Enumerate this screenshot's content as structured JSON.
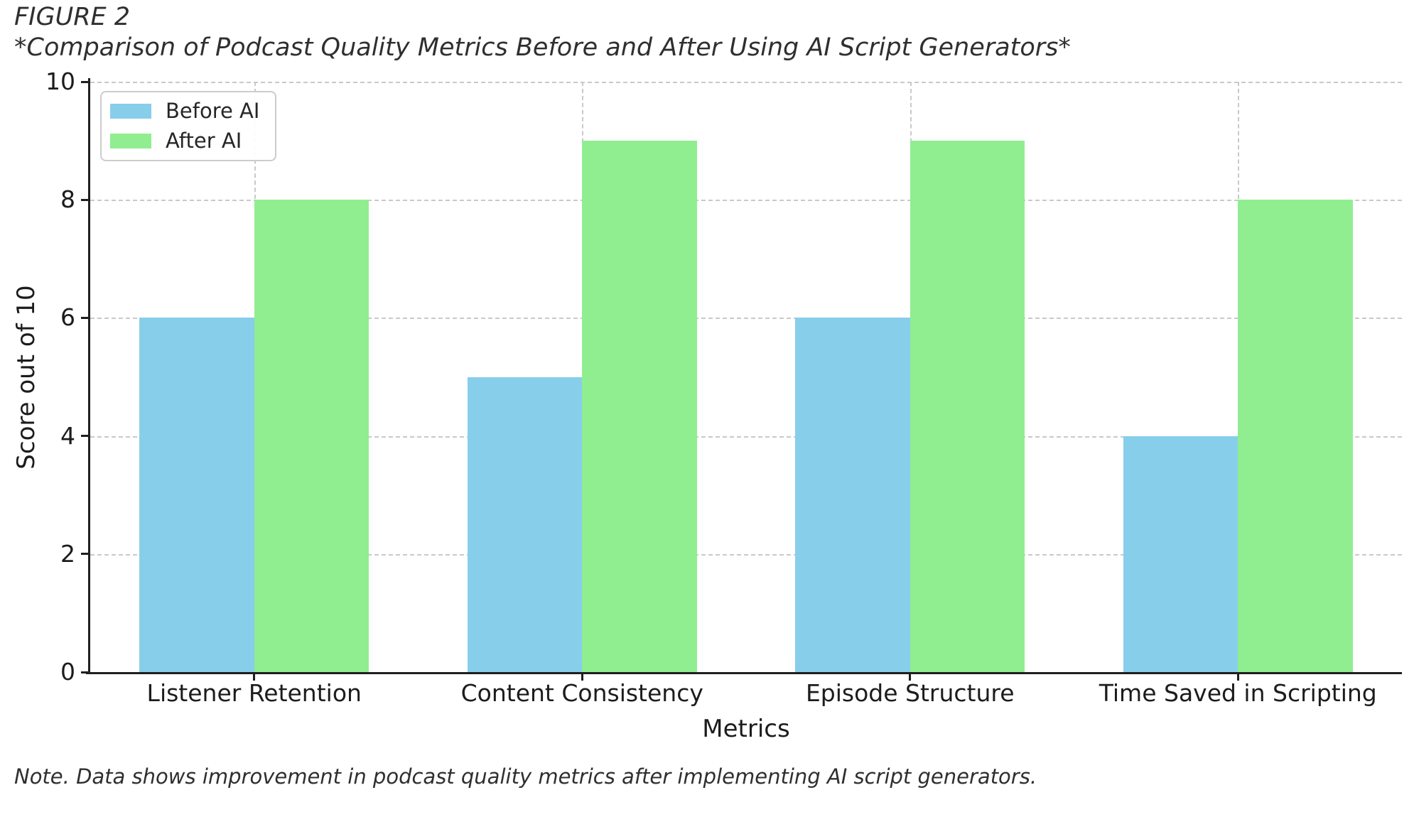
{
  "figure": {
    "title": "FIGURE 2",
    "subtitle": "*Comparison of Podcast Quality Metrics Before and After Using AI Script Generators*",
    "note": "Note. Data shows improvement in podcast quality metrics after implementing AI script generators."
  },
  "chart_data": {
    "type": "bar",
    "title": "Comparison of Podcast Quality Metrics Before and After Using AI Script Generators",
    "categories": [
      "Listener Retention",
      "Content Consistency",
      "Episode Structure",
      "Time Saved in Scripting"
    ],
    "series": [
      {
        "name": "Before AI",
        "color": "#87CEEB",
        "values": [
          6,
          5,
          6,
          4
        ]
      },
      {
        "name": "After AI",
        "color": "#90EE90",
        "values": [
          8,
          9,
          9,
          8
        ]
      }
    ],
    "xlabel": "Metrics",
    "ylabel": "Score out of 10",
    "ylim": [
      0,
      10
    ],
    "yticks": [
      0,
      2,
      4,
      6,
      8,
      10
    ],
    "grid": true,
    "grid_style": "dashed",
    "legend_position": "upper left",
    "bar_width_fraction": 0.35,
    "colors": {
      "spine": "#1f1f1f",
      "gridline": "#c9c9c9",
      "text": "#1c1c1c"
    }
  }
}
